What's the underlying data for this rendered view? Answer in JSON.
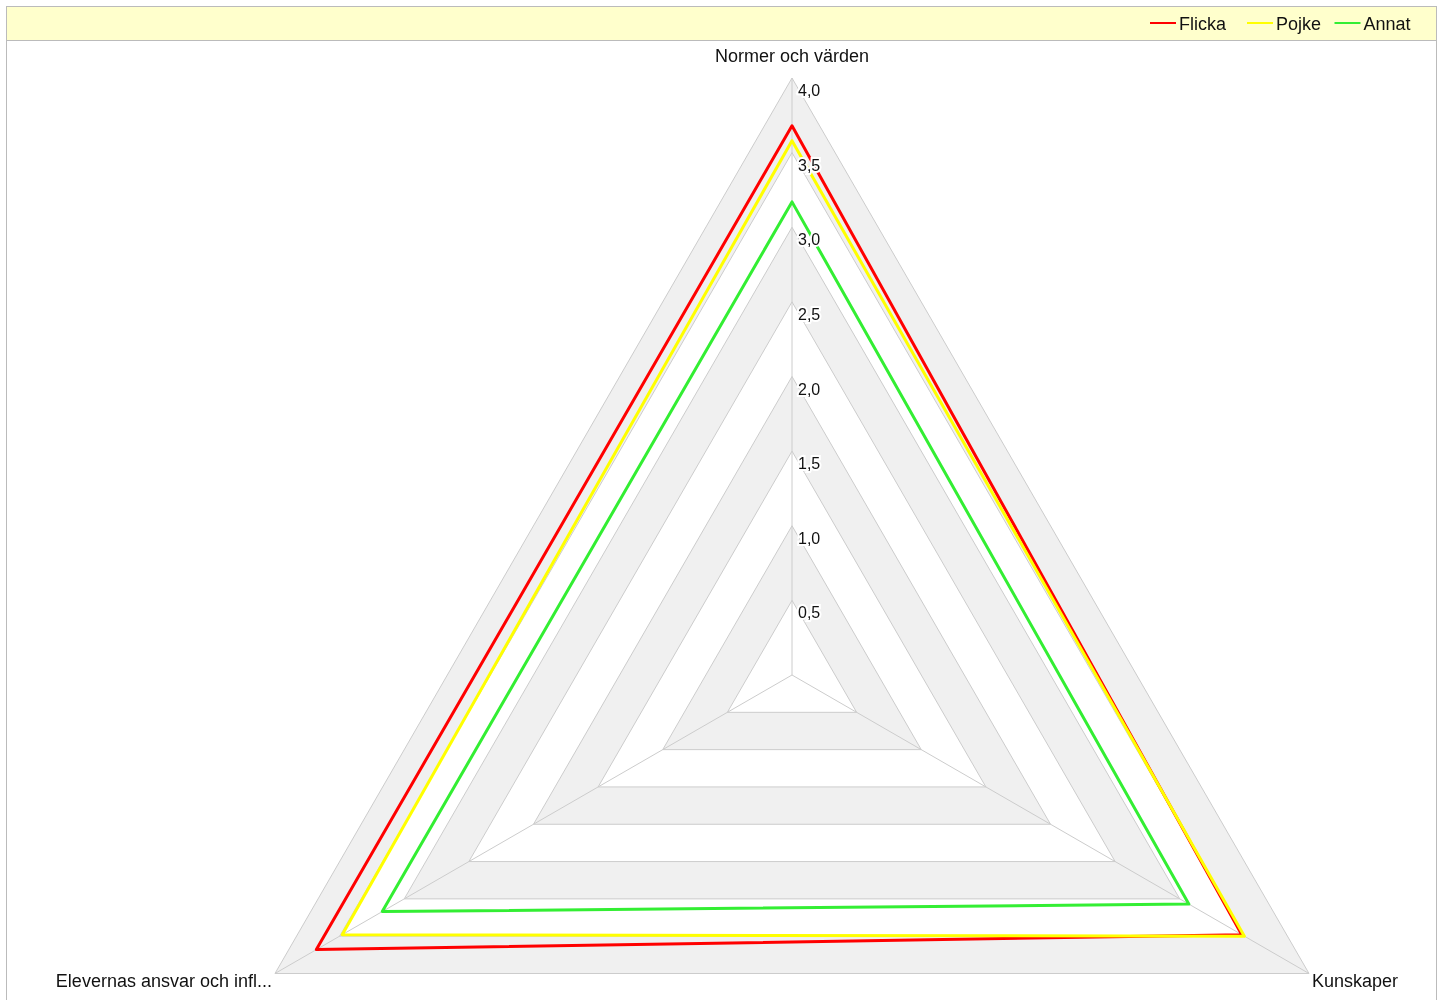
{
  "chart_data": {
    "type": "radar",
    "categories": [
      "Normer och värden",
      "Kunskaper",
      "Elevernas ansvar och infl..."
    ],
    "series": [
      {
        "name": "Flicka",
        "color": "#ff0000",
        "values": [
          3.68,
          3.48,
          3.68
        ]
      },
      {
        "name": "Pojke",
        "color": "#ffff00",
        "values": [
          3.58,
          3.5,
          3.48
        ]
      },
      {
        "name": "Annat",
        "color": "#33ee33",
        "values": [
          3.17,
          3.07,
          3.17
        ]
      }
    ],
    "ylim": [
      0,
      4
    ],
    "yticks": [
      {
        "value": 0.5,
        "label": "0,5"
      },
      {
        "value": 1,
        "label": "1,0"
      },
      {
        "value": 1.5,
        "label": "1,5"
      },
      {
        "value": 2,
        "label": "2,0"
      },
      {
        "value": 2.5,
        "label": "2,5"
      },
      {
        "value": 3,
        "label": "3,0"
      },
      {
        "value": 3.5,
        "label": "3,5"
      },
      {
        "value": 4,
        "label": "4,0"
      }
    ],
    "grid": true,
    "legend": "top right"
  }
}
